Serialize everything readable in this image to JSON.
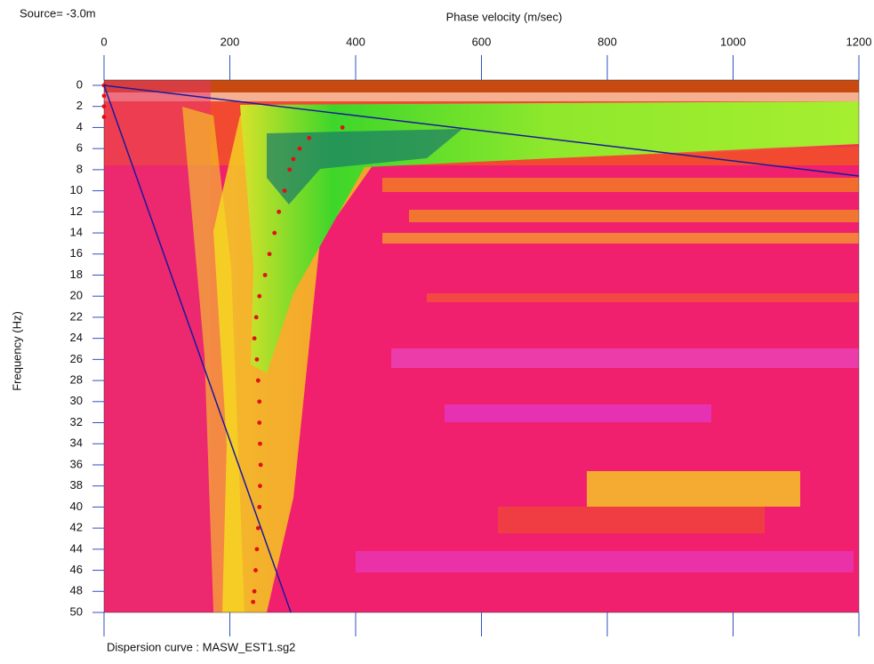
{
  "chart_data": {
    "type": "scatter",
    "title": "Source= -3.0m",
    "x_label": "Phase velocity (m/sec)",
    "y_label": "Frequency (Hz)",
    "caption": "Dispersion curve : MASW_EST1.sg2",
    "xlim": [
      0,
      1200
    ],
    "ylim": [
      0,
      50
    ],
    "y_inverted": true,
    "xticks": [
      0,
      200,
      400,
      600,
      800,
      1000,
      1200
    ],
    "yticks": [
      0,
      2,
      4,
      6,
      8,
      10,
      12,
      14,
      16,
      18,
      20,
      22,
      24,
      26,
      28,
      30,
      32,
      34,
      36,
      38,
      40,
      42,
      44,
      46,
      48,
      50
    ],
    "series": [
      {
        "type": "scatter",
        "color": "#e01010",
        "x": [
          0,
          0,
          0,
          0,
          379,
          326,
          311,
          301,
          295,
          287,
          278,
          271,
          263,
          256,
          247,
          242,
          239,
          243,
          245,
          247,
          247,
          248,
          249,
          248,
          247,
          245,
          243,
          241,
          239,
          237
        ],
        "values": [
          0,
          1,
          2,
          3,
          4,
          5,
          6,
          7,
          8,
          10,
          12,
          14,
          16,
          18,
          20,
          22,
          24,
          26,
          28,
          30,
          32,
          34,
          36,
          38,
          40,
          42,
          44,
          46,
          48,
          49
        ]
      },
      {
        "type": "line",
        "color": "#1a1a9c",
        "x": [
          0,
          1200
        ],
        "values": [
          0,
          8.6
        ]
      },
      {
        "type": "line",
        "color": "#1a1a9c",
        "x": [
          0,
          297
        ],
        "values": [
          0,
          50
        ]
      }
    ]
  }
}
